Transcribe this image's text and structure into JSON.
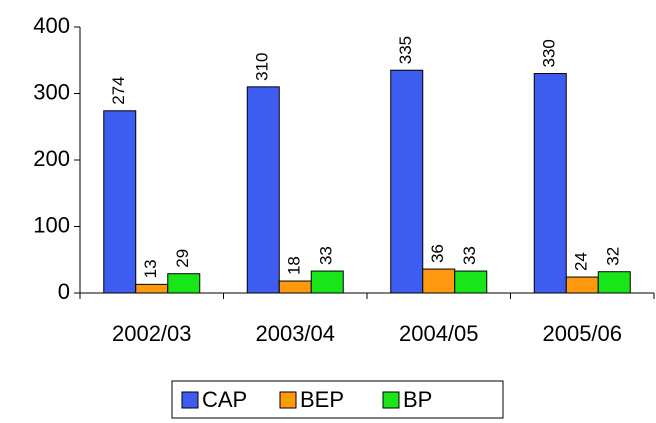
{
  "chart_data": {
    "type": "bar",
    "categories": [
      "2002/03",
      "2003/04",
      "2004/05",
      "2005/06"
    ],
    "series": [
      {
        "name": "CAP",
        "color": "#3d5cf0",
        "values": [
          274,
          310,
          335,
          330
        ]
      },
      {
        "name": "BEP",
        "color": "#ff9a10",
        "values": [
          13,
          18,
          36,
          24
        ]
      },
      {
        "name": "BP",
        "color": "#19e619",
        "values": [
          29,
          33,
          33,
          32
        ]
      }
    ],
    "ylim": [
      0,
      400
    ],
    "yticks": [
      0,
      100,
      200,
      300,
      400
    ],
    "grid": false,
    "legend": "bottom"
  }
}
